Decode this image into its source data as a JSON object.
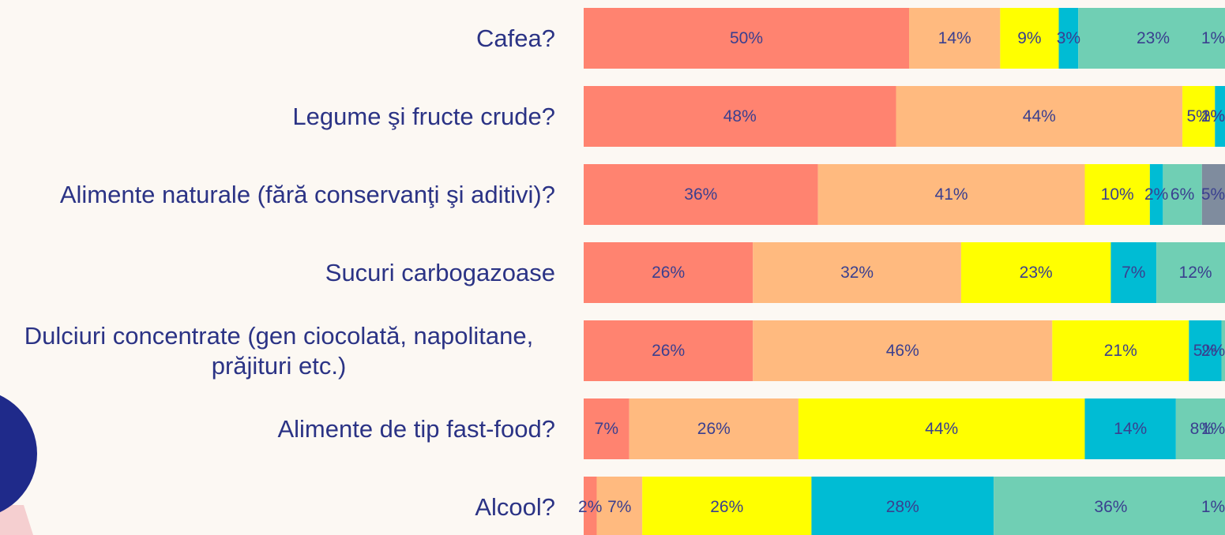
{
  "chart_data": {
    "type": "bar",
    "orientation": "horizontal",
    "stacked": true,
    "categories": [
      "Cafea?",
      "Legume şi fructe crude?",
      "Alimente naturale (fără conservanţi şi aditivi)?",
      "Sucuri carbogazoase",
      "Dulciuri concentrate (gen ciocolată, napolitane, prăjituri etc.)",
      "Alimente de tip fast-food?",
      "Alcool?"
    ],
    "xlim": [
      0,
      100
    ],
    "series": [
      {
        "color": "#ff8370",
        "values": [
          50,
          48,
          36,
          26,
          26,
          7,
          2
        ],
        "value_labels": [
          "50%",
          "48%",
          "36%",
          "26%",
          "26%",
          "7%",
          "2%"
        ]
      },
      {
        "color": "#ffba7f",
        "values": [
          14,
          44,
          41,
          32,
          46,
          26,
          7
        ],
        "value_labels": [
          "14%",
          "44%",
          "41%",
          "32%",
          "46%",
          "26%",
          "7%"
        ]
      },
      {
        "color": "#ffff00",
        "values": [
          9,
          5,
          10,
          23,
          21,
          44,
          26
        ],
        "value_labels": [
          "9%",
          "5%",
          "10%",
          "23%",
          "21%",
          "44%",
          "26%"
        ]
      },
      {
        "color": "#00bcd4",
        "values": [
          3,
          2,
          2,
          7,
          5,
          14,
          28
        ],
        "value_labels": [
          "3%",
          "2%",
          "2%",
          "7%",
          "5%",
          "14%",
          "28%"
        ]
      },
      {
        "color": "#70cfb4",
        "values": [
          23,
          1,
          6,
          12,
          2,
          8,
          36
        ],
        "value_labels": [
          "23%",
          "1%",
          "6%",
          "12%",
          "2%",
          "8%",
          "36%"
        ]
      },
      {
        "color": "#7f8c9e",
        "values": [
          1,
          null,
          5,
          null,
          null,
          1,
          1
        ],
        "value_labels": [
          "1%",
          null,
          "5%",
          null,
          null,
          "1%",
          "1%"
        ]
      }
    ]
  }
}
